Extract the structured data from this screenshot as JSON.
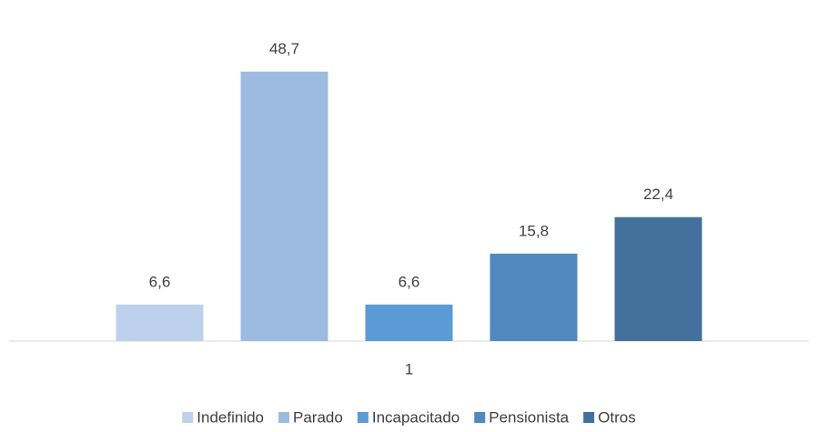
{
  "chart_data": {
    "type": "bar",
    "categories": [
      "1"
    ],
    "series": [
      {
        "name": "Indefinido",
        "color": "#bdd1ec",
        "values": [
          6.6
        ],
        "value_labels": [
          "6,6"
        ]
      },
      {
        "name": "Parado",
        "color": "#9dbbe1",
        "values": [
          48.7
        ],
        "value_labels": [
          "48,7"
        ]
      },
      {
        "name": "Incapacitado",
        "color": "#5b9ad5",
        "values": [
          6.6
        ],
        "value_labels": [
          "6,6"
        ]
      },
      {
        "name": "Pensionista",
        "color": "#4f89bd",
        "values": [
          15.8
        ],
        "value_labels": [
          "15,8"
        ]
      },
      {
        "name": "Otros",
        "color": "#44719c",
        "values": [
          22.4
        ],
        "value_labels": [
          "22,4"
        ]
      }
    ],
    "ylim": [
      0,
      60
    ],
    "legend": "bottom"
  }
}
